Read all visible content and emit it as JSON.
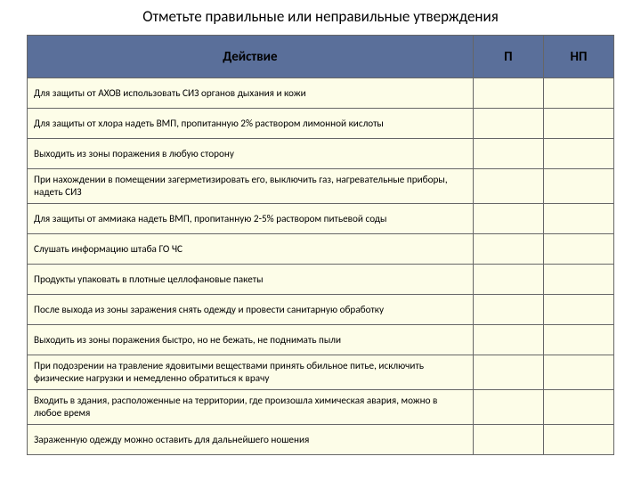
{
  "title": "Отметьте правильные или неправильные утверждения",
  "columns": {
    "action": "Действие",
    "correct": "П",
    "incorrect": "НП"
  },
  "rows": [
    "Для защиты от АХОВ использовать СИЗ органов дыхания и кожи",
    "Для защиты от хлора надеть ВМП, пропитанную 2% раствором лимонной кислоты",
    "Выходить из зоны поражения в любую сторону",
    "При нахождении в помещении загерметизировать его, выключить газ, нагревательные приборы, надеть СИЗ",
    "Для защиты от аммиака надеть ВМП, пропитанную 2-5% раствором питьевой соды",
    "Слушать информацию штаба ГО ЧС",
    "Продукты упаковать в плотные целлофановые пакеты",
    "После выхода из зоны заражения снять одежду и провести санитарную обработку",
    "Выходить из зоны поражения быстро, но не бежать, не поднимать пыли",
    "При подозрении на травление ядовитыми веществами принять обильное питье, исключить физические нагрузки и немедленно обратиться к врачу",
    "Входить в здания, расположенные на территории, где произошла химическая авария, можно в любое время",
    "Зараженную одежду можно оставить для дальнейшего ношения"
  ],
  "styles": {
    "header_bg": "#5a6f9a",
    "cell_bg": "#fdfde8",
    "border_color": "#666666",
    "title_fontsize": 17,
    "header_fontsize": 15,
    "cell_fontsize": 11.2
  }
}
